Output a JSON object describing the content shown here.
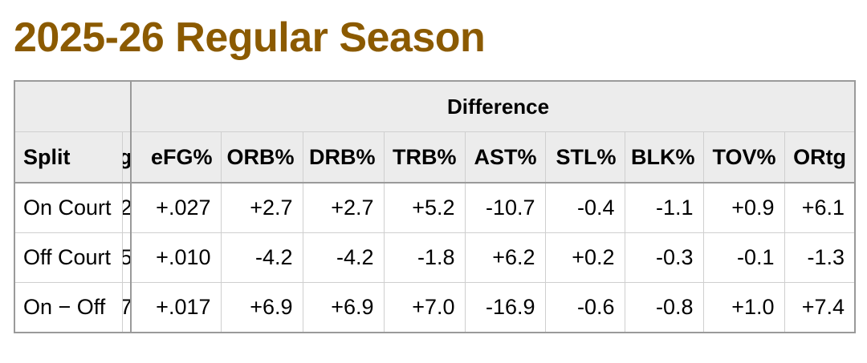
{
  "title": "2025-26 Regular Season",
  "table": {
    "group_header": "Difference",
    "split_header": "Split",
    "clipped_header_fragment": "g",
    "columns": [
      "eFG%",
      "ORB%",
      "DRB%",
      "TRB%",
      "AST%",
      "STL%",
      "BLK%",
      "TOV%",
      "ORtg"
    ],
    "rows": [
      {
        "split": "On Court",
        "clipped_fragment": "2",
        "values": [
          "+.027",
          "+2.7",
          "+2.7",
          "+5.2",
          "-10.7",
          "-0.4",
          "-1.1",
          "+0.9",
          "+6.1"
        ]
      },
      {
        "split": "Off Court",
        "clipped_fragment": "5",
        "values": [
          "+.010",
          "-4.2",
          "-4.2",
          "-1.8",
          "+6.2",
          "+0.2",
          "-0.3",
          "-0.1",
          "-1.3"
        ]
      },
      {
        "split": "On − Off",
        "clipped_fragment": "7",
        "values": [
          "+.017",
          "+6.9",
          "+6.9",
          "+7.0",
          "-16.9",
          "-0.6",
          "-0.8",
          "+1.0",
          "+7.4"
        ]
      }
    ]
  }
}
